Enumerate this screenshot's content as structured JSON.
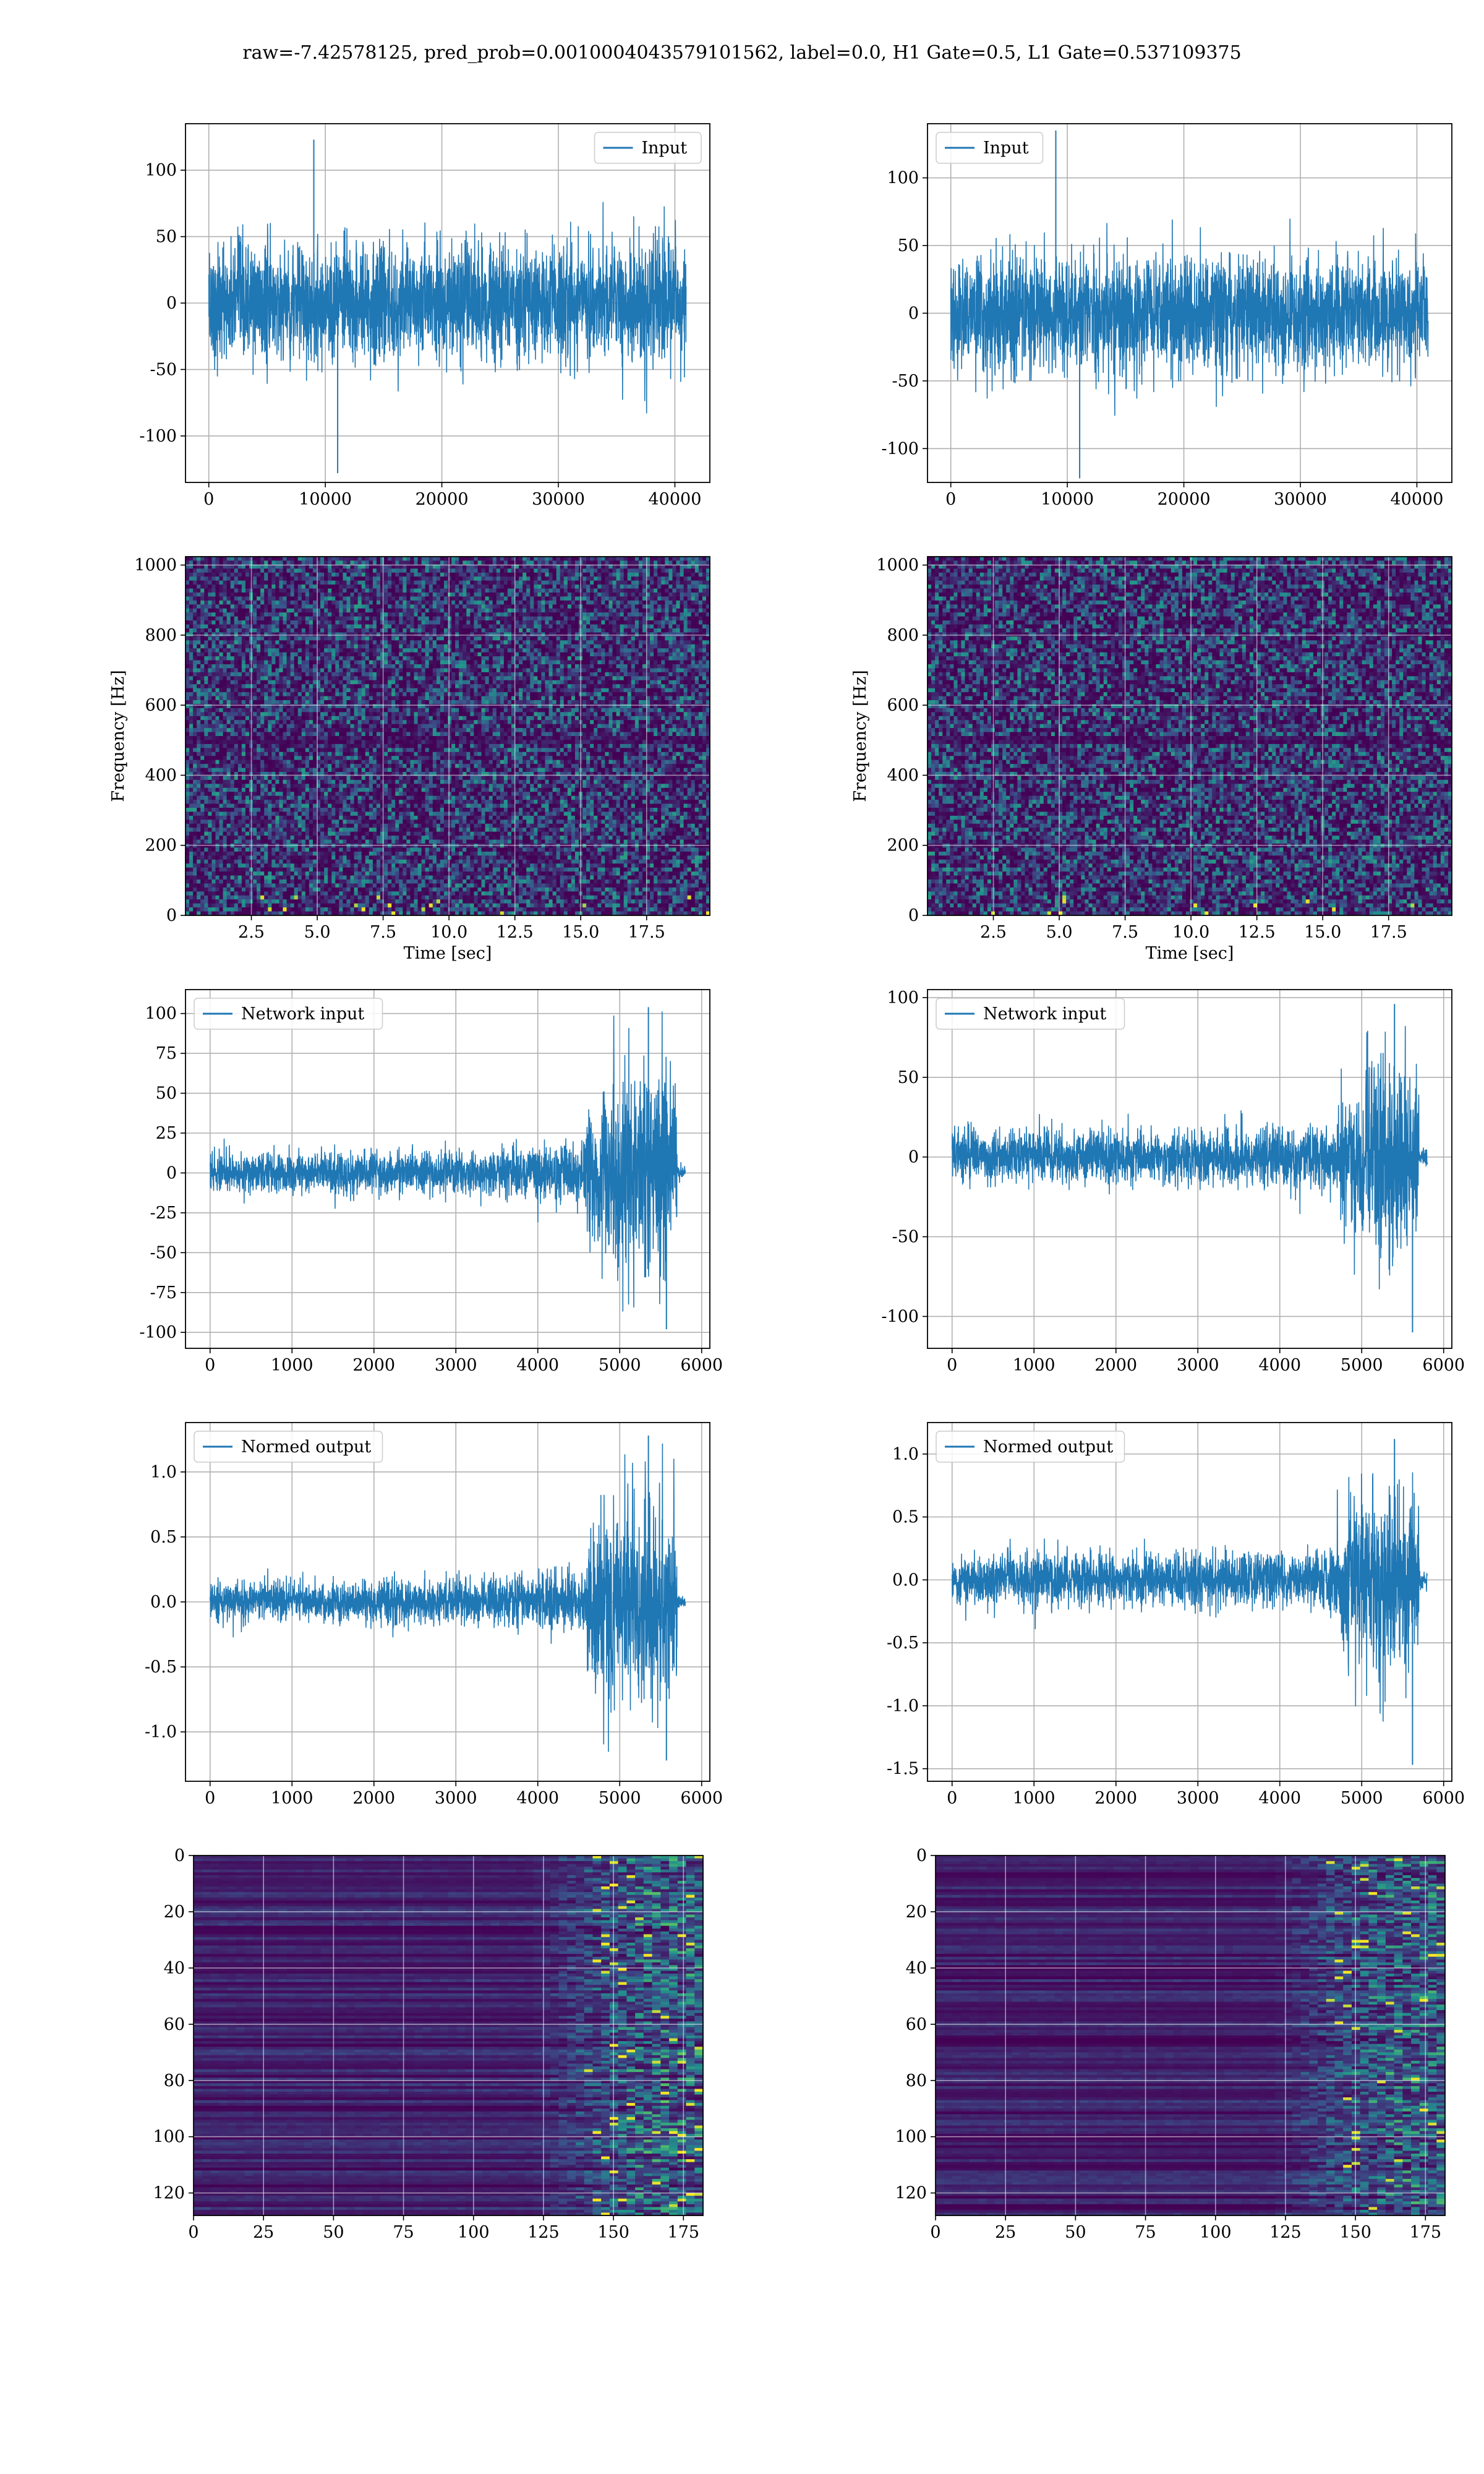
{
  "figure": {
    "title": "raw=-7.42578125, pred_prob=0.0010004043579101562, label=0.0, H1 Gate=0.5, L1 Gate=0.537109375"
  },
  "colors": {
    "series": "#1f77b4",
    "grid": "#b0b0b0",
    "viridis_low": "#440154",
    "viridis_high": "#fde725"
  },
  "chart_data": [
    {
      "id": "input-h1",
      "type": "line",
      "legend": "Input",
      "legend_loc": "upper right",
      "grid": true,
      "xlim": [
        -2000,
        43000
      ],
      "ylim": [
        -135,
        135
      ],
      "xticks": [
        0,
        10000,
        20000,
        30000,
        40000
      ],
      "yticks": [
        -100,
        -50,
        0,
        50,
        100
      ],
      "x_range": [
        0,
        40960
      ],
      "noise_sigma": 22,
      "peak_max": 123,
      "peak_min": -128,
      "envelope": "stationary"
    },
    {
      "id": "input-l1",
      "type": "line",
      "legend": "Input",
      "legend_loc": "upper left",
      "grid": true,
      "xlim": [
        -2000,
        43000
      ],
      "ylim": [
        -125,
        140
      ],
      "xticks": [
        0,
        10000,
        20000,
        30000,
        40000
      ],
      "yticks": [
        -100,
        -50,
        0,
        50,
        100
      ],
      "x_range": [
        0,
        40960
      ],
      "noise_sigma": 21,
      "peak_max": 135,
      "peak_min": -122,
      "envelope": "stationary"
    },
    {
      "id": "spec-h1",
      "type": "heatmap",
      "xlabel": "Time [sec]",
      "ylabel": "Frequency [Hz]",
      "grid": true,
      "xlim": [
        0,
        19.9
      ],
      "ylim": [
        0,
        1024
      ],
      "xticks": [
        2.5,
        5.0,
        7.5,
        10.0,
        12.5,
        15.0,
        17.5
      ],
      "yticks": [
        0,
        200,
        400,
        600,
        800,
        1000
      ],
      "colormap": "viridis",
      "features": "uniform noise; dark band near 500 Hz; bright speckles below 60 Hz"
    },
    {
      "id": "spec-l1",
      "type": "heatmap",
      "xlabel": "Time [sec]",
      "ylabel": "Frequency [Hz]",
      "grid": true,
      "xlim": [
        0,
        19.9
      ],
      "ylim": [
        0,
        1024
      ],
      "xticks": [
        2.5,
        5.0,
        7.5,
        10.0,
        12.5,
        15.0,
        17.5
      ],
      "yticks": [
        0,
        200,
        400,
        600,
        800,
        1000
      ],
      "colormap": "viridis",
      "features": "uniform noise; dark band near 500 Hz; bright speckles below 60 Hz"
    },
    {
      "id": "net-h1",
      "type": "line",
      "legend": "Network input",
      "legend_loc": "upper left",
      "grid": true,
      "xlim": [
        -300,
        6100
      ],
      "ylim": [
        -110,
        115
      ],
      "xticks": [
        0,
        1000,
        2000,
        3000,
        4000,
        5000,
        6000
      ],
      "yticks": [
        -100,
        -75,
        -50,
        -25,
        0,
        25,
        50,
        75,
        100
      ],
      "x_range": [
        0,
        5800
      ],
      "end_of_signal": 5700,
      "noise_sigma_start": 6,
      "noise_sigma_end": 34,
      "burst_start": 4600,
      "peak_max": 104,
      "peak_min": -98,
      "envelope": "growing"
    },
    {
      "id": "net-l1",
      "type": "line",
      "legend": "Network input",
      "legend_loc": "upper left",
      "grid": true,
      "xlim": [
        -300,
        6100
      ],
      "ylim": [
        -120,
        105
      ],
      "xticks": [
        0,
        1000,
        2000,
        3000,
        4000,
        5000,
        6000
      ],
      "yticks": [
        -100,
        -50,
        0,
        50,
        100
      ],
      "x_range": [
        0,
        5800
      ],
      "end_of_signal": 5700,
      "noise_sigma_start": 8,
      "noise_sigma_end": 32,
      "burst_start": 4700,
      "peak_max": 96,
      "peak_min": -110,
      "envelope": "growing"
    },
    {
      "id": "norm-h1",
      "type": "line",
      "legend": "Normed output",
      "legend_loc": "upper left",
      "grid": true,
      "xlim": [
        -300,
        6100
      ],
      "ylim": [
        -1.38,
        1.38
      ],
      "xticks": [
        0,
        1000,
        2000,
        3000,
        4000,
        5000,
        6000
      ],
      "yticks": [
        -1.0,
        -0.5,
        0.0,
        0.5,
        1.0
      ],
      "x_range": [
        0,
        5800
      ],
      "end_of_signal": 5700,
      "noise_sigma_start": 0.075,
      "noise_sigma_end": 0.42,
      "burst_start": 4600,
      "peak_max": 1.28,
      "peak_min": -1.22,
      "envelope": "growing"
    },
    {
      "id": "norm-l1",
      "type": "line",
      "legend": "Normed output",
      "legend_loc": "upper left",
      "grid": true,
      "xlim": [
        -300,
        6100
      ],
      "ylim": [
        -1.6,
        1.25
      ],
      "xticks": [
        0,
        1000,
        2000,
        3000,
        4000,
        5000,
        6000
      ],
      "yticks": [
        -1.5,
        -1.0,
        -0.5,
        0.0,
        0.5,
        1.0
      ],
      "x_range": [
        0,
        5800
      ],
      "end_of_signal": 5700,
      "noise_sigma_start": 0.1,
      "noise_sigma_end": 0.4,
      "burst_start": 4700,
      "peak_max": 1.12,
      "peak_min": -1.47,
      "envelope": "growing"
    },
    {
      "id": "feat-h1",
      "type": "heatmap",
      "grid": true,
      "colormap": "viridis",
      "y_inverted": true,
      "xlim": [
        0,
        182
      ],
      "ylim": [
        128,
        0
      ],
      "xticks": [
        0,
        25,
        50,
        75,
        100,
        125,
        150,
        175
      ],
      "yticks": [
        0,
        20,
        40,
        60,
        80,
        100,
        120
      ],
      "features": "128 horizontal channels of dark stripes, activity rises after column 125"
    },
    {
      "id": "feat-l1",
      "type": "heatmap",
      "grid": true,
      "colormap": "viridis",
      "y_inverted": true,
      "xlim": [
        0,
        182
      ],
      "ylim": [
        128,
        0
      ],
      "xticks": [
        0,
        25,
        50,
        75,
        100,
        125,
        150,
        175
      ],
      "yticks": [
        0,
        20,
        40,
        60,
        80,
        100,
        120
      ],
      "features": "128 horizontal channels of dark stripes, activity rises after column 125"
    }
  ]
}
